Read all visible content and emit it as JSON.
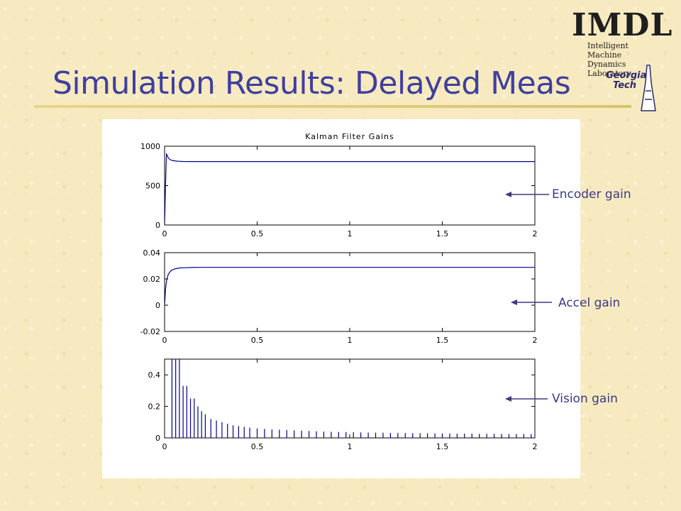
{
  "slide": {
    "title": "Simulation Results: Delayed Meas"
  },
  "logos": {
    "imdl": {
      "abbr": "IMDL",
      "line1": "Intelligent Machine",
      "line2": "Dynamics Laboratory"
    },
    "gt": {
      "line1": "Georgia",
      "line2": "Tech"
    }
  },
  "annotations": {
    "encoder": "Encoder gain",
    "accel": "Accel gain",
    "vision": "Vision gain"
  },
  "chart_data": [
    {
      "type": "line",
      "title": "Kalman Filter Gains",
      "xlim": [
        0,
        2
      ],
      "ylim": [
        0,
        1000
      ],
      "xticks": [
        "0",
        "0.5",
        "1",
        "1.5",
        "2"
      ],
      "yticks": [
        "0",
        "500",
        "1000"
      ],
      "series": [
        {
          "color": "#00008b",
          "x": [
            0,
            0.005,
            0.01,
            0.015,
            0.02,
            0.03,
            0.04,
            0.06,
            0.08,
            0.1,
            0.15,
            0.2,
            0.5,
            1,
            1.5,
            2
          ],
          "y": [
            0,
            500,
            900,
            880,
            850,
            830,
            820,
            812,
            808,
            806,
            805,
            805,
            805,
            805,
            805,
            805
          ]
        }
      ]
    },
    {
      "type": "line",
      "xlim": [
        0,
        2
      ],
      "ylim": [
        -0.02,
        0.04
      ],
      "xticks": [
        "0",
        "0.5",
        "1",
        "1.5",
        "2"
      ],
      "yticks": [
        "-0.02",
        "0",
        "0.02",
        "0.04"
      ],
      "series": [
        {
          "color": "#00008b",
          "x": [
            0,
            0.005,
            0.01,
            0.015,
            0.02,
            0.03,
            0.04,
            0.06,
            0.08,
            0.1,
            0.15,
            0.2,
            0.5,
            1,
            1.5,
            2
          ],
          "y": [
            0,
            0.012,
            0.018,
            0.021,
            0.0235,
            0.0255,
            0.0268,
            0.0278,
            0.0283,
            0.0285,
            0.0287,
            0.0288,
            0.0288,
            0.0288,
            0.0288,
            0.0288
          ]
        }
      ]
    },
    {
      "type": "bar",
      "xlim": [
        0,
        2
      ],
      "ylim": [
        0,
        0.5
      ],
      "xticks": [
        "0",
        "0.5",
        "1",
        "1.5",
        "2"
      ],
      "yticks": [
        "0",
        "0.2",
        "0.4"
      ],
      "series": [
        {
          "color": "#00008b",
          "x": [
            0.04,
            0.06,
            0.08,
            0.1,
            0.12,
            0.14,
            0.16,
            0.18,
            0.2,
            0.22,
            0.25,
            0.28,
            0.31,
            0.34,
            0.37,
            0.4,
            0.43,
            0.46,
            0.5,
            0.54,
            0.58,
            0.62,
            0.66,
            0.7,
            0.74,
            0.78,
            0.82,
            0.86,
            0.9,
            0.94,
            0.98,
            1.02,
            1.06,
            1.1,
            1.14,
            1.18,
            1.22,
            1.26,
            1.3,
            1.34,
            1.38,
            1.42,
            1.46,
            1.5,
            1.54,
            1.58,
            1.62,
            1.66,
            1.7,
            1.74,
            1.78,
            1.82,
            1.86,
            1.9,
            1.94,
            1.98
          ],
          "y": [
            0.5,
            0.5,
            0.5,
            0.33,
            0.33,
            0.25,
            0.25,
            0.2,
            0.17,
            0.15,
            0.12,
            0.11,
            0.1,
            0.09,
            0.08,
            0.075,
            0.07,
            0.065,
            0.06,
            0.057,
            0.054,
            0.052,
            0.05,
            0.048,
            0.046,
            0.044,
            0.042,
            0.04,
            0.039,
            0.038,
            0.037,
            0.036,
            0.035,
            0.034,
            0.033,
            0.033,
            0.032,
            0.031,
            0.031,
            0.03,
            0.03,
            0.029,
            0.029,
            0.028,
            0.028,
            0.027,
            0.027,
            0.027,
            0.026,
            0.026,
            0.026,
            0.025,
            0.025,
            0.025,
            0.025,
            0.024
          ]
        }
      ]
    }
  ]
}
